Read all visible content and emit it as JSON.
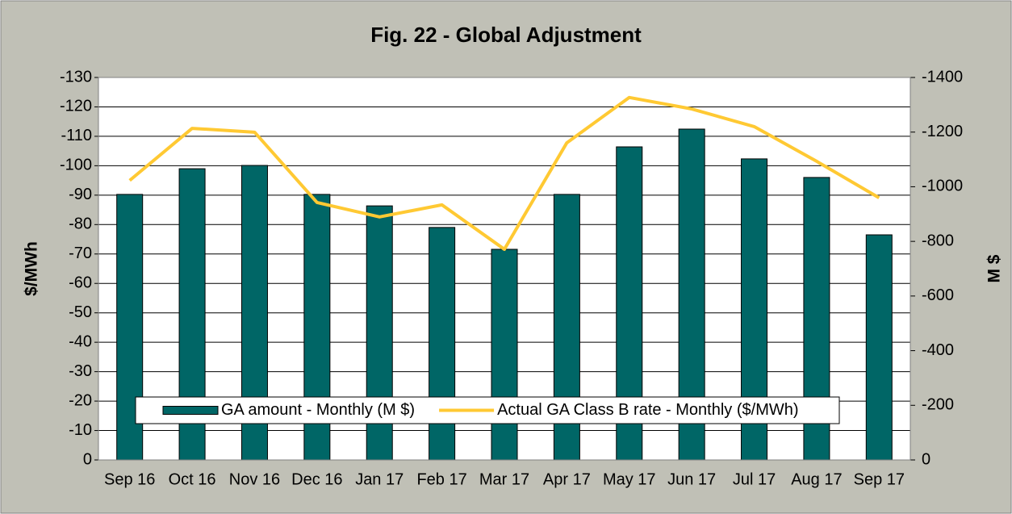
{
  "chart_data": {
    "type": "combo",
    "title": "Fig. 22 - Global Adjustment",
    "y_label": "$/MWh",
    "y2_label": "M $",
    "categories": [
      "Sep 16",
      "Oct 16",
      "Nov 16",
      "Dec 16",
      "Jan 17",
      "Feb 17",
      "Mar 17",
      "Apr 17",
      "May 17",
      "Jun 17",
      "Jul 17",
      "Aug 17",
      "Sep 17"
    ],
    "series": [
      {
        "name": "GA amount - Monthly (M $)",
        "type": "bar",
        "axis": "y2",
        "color": "#006666",
        "values": [
          -972,
          -1066,
          -1078,
          -972,
          -930,
          -851,
          -771,
          -972,
          -1146,
          -1211,
          -1102,
          -1034,
          -824
        ]
      },
      {
        "name": "Actual GA Class B rate - Monthly ($/MWh)",
        "type": "line",
        "axis": "y",
        "color": "#ffc933",
        "values": [
          -95,
          -112.7,
          -111.4,
          -87.5,
          -82.6,
          -86.7,
          -71.6,
          -107.8,
          -123.2,
          -119.3,
          -113.3,
          -101.5,
          -89.1
        ]
      }
    ],
    "ylim": [
      0,
      -130
    ],
    "yticks": [
      0,
      -10,
      -20,
      -30,
      -40,
      -50,
      -60,
      -70,
      -80,
      -90,
      -100,
      -110,
      -120,
      -130
    ],
    "y2lim": [
      0,
      -1400
    ],
    "y2ticks": [
      0,
      -200,
      -400,
      -600,
      -800,
      -1000,
      -1200,
      -1400
    ],
    "grid": true,
    "legend": "lower center"
  }
}
